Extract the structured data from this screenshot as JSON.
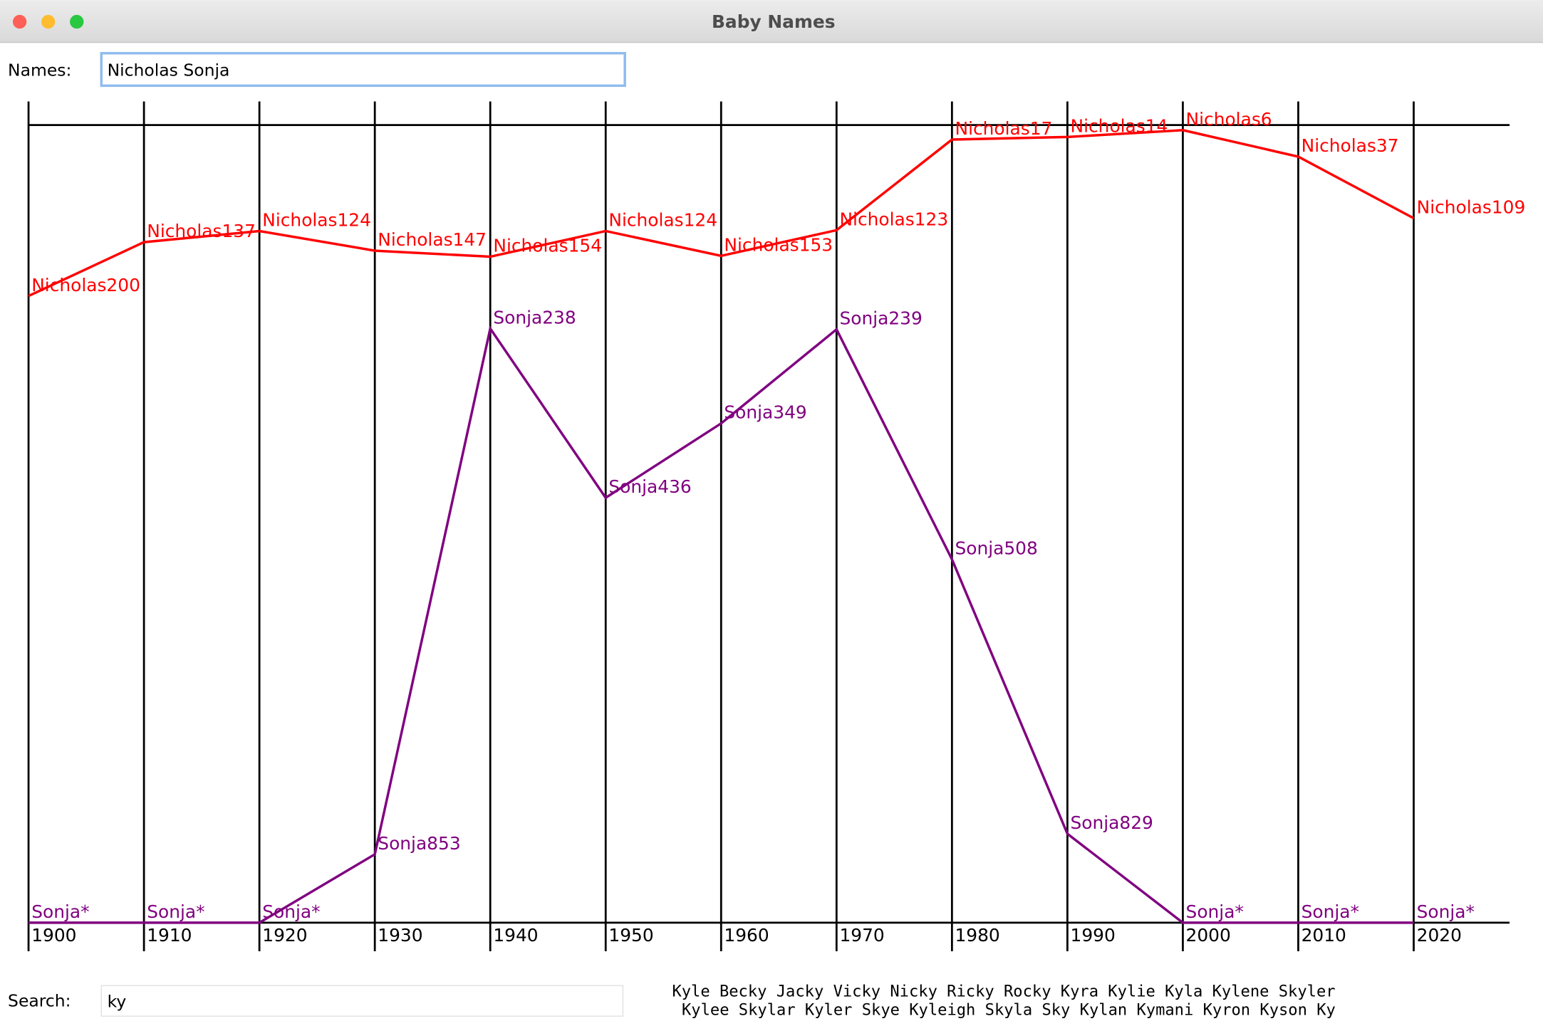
{
  "window": {
    "title": "Baby Names"
  },
  "names": {
    "label": "Names:",
    "value": "Nicholas Sonja"
  },
  "chart_data": {
    "type": "line",
    "categories": [
      "1900",
      "1910",
      "1920",
      "1930",
      "1940",
      "1950",
      "1960",
      "1970",
      "1980",
      "1990",
      "2000",
      "2010",
      "2020"
    ],
    "ylim": [
      0,
      933
    ],
    "series": [
      {
        "color": "#ff0000",
        "values": [
          200,
          137,
          124,
          147,
          154,
          124,
          153,
          123,
          17,
          14,
          6,
          37,
          109
        ],
        "value_labels": [
          "Nicholas200",
          "Nicholas137",
          "Nicholas124",
          "Nicholas147",
          "Nicholas154",
          "Nicholas124",
          "Nicholas153",
          "Nicholas123",
          "Nicholas17",
          "Nicholas14",
          "Nicholas6",
          "Nicholas37",
          "Nicholas109"
        ]
      },
      {
        "color": "#800080",
        "values": [
          0,
          0,
          0,
          853,
          238,
          436,
          349,
          239,
          508,
          829,
          0,
          0,
          0
        ],
        "value_labels": [
          "Sonja*",
          "Sonja*",
          "Sonja*",
          "Sonja853",
          "Sonja238",
          "Sonja436",
          "Sonja349",
          "Sonja239",
          "Sonja508",
          "Sonja829",
          "Sonja*",
          "Sonja*",
          "Sonja*"
        ]
      }
    ]
  },
  "search": {
    "label": "Search:",
    "value": "ky",
    "results": [
      "Kyle Becky Jacky Vicky Nicky Ricky Rocky Kyra Kylie Kyla Kylene Skyler",
      "Kylee Skylar Kyler Skye Kyleigh Skyla Sky Kylan Kymani Kyron Kyson Ky"
    ]
  }
}
